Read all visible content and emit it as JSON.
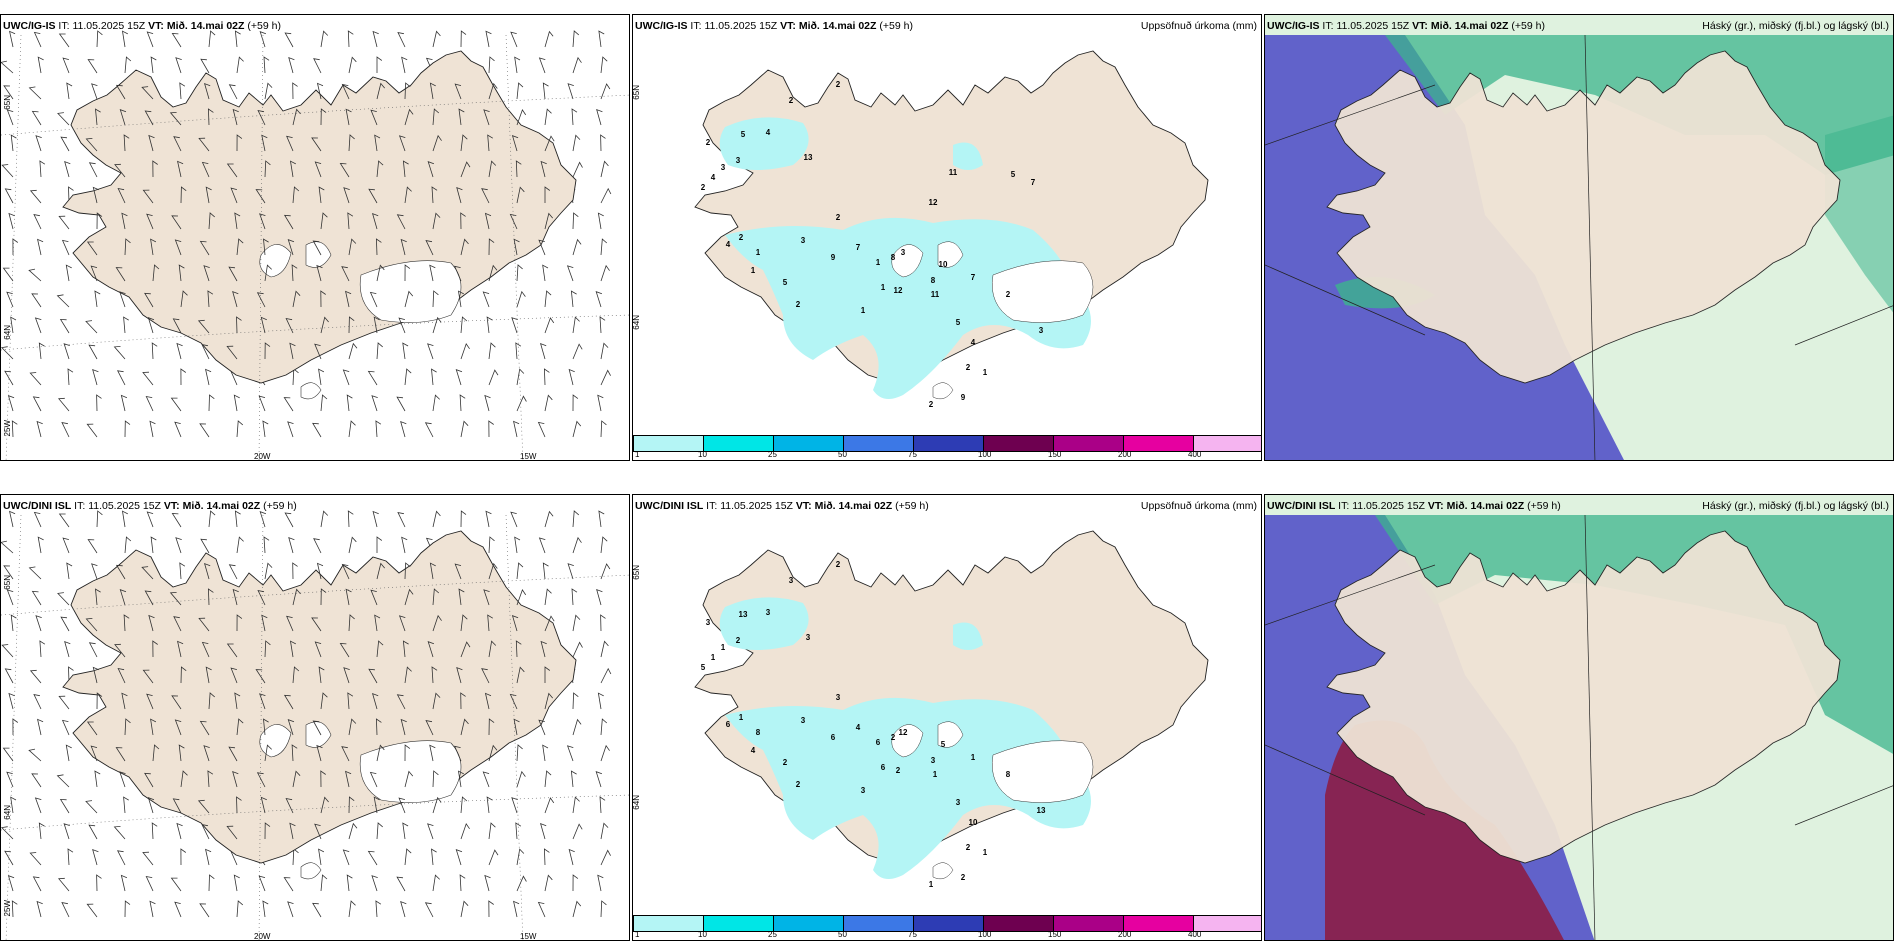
{
  "rows": [
    {
      "model": "UWC/IG-IS",
      "it_label": "IT:",
      "it_value": "11.05.2025 15Z",
      "vt_label": "VT:",
      "vt_value": "Mið. 14.mai 02Z",
      "lead": "(+59 h)",
      "axis_lat1": "65N",
      "axis_lat2": "64N",
      "axis_lon1": "25W",
      "axis_lon2": "20W",
      "axis_lon3": "15W",
      "precip_numbers": [
        "2",
        "2",
        "5",
        "4",
        "13",
        "2",
        "3",
        "3",
        "4",
        "2",
        "2",
        "1",
        "1",
        "4",
        "2",
        "3",
        "5",
        "1",
        "2",
        "9",
        "7",
        "8",
        "3",
        "1",
        "1",
        "10",
        "12",
        "8",
        "11",
        "7",
        "2",
        "5",
        "3",
        "4",
        "2",
        "1",
        "9",
        "2",
        "11",
        "12",
        "5",
        "7"
      ]
    },
    {
      "model": "UWC/DINI ISL",
      "it_label": "IT:",
      "it_value": "11.05.2025 15Z",
      "vt_label": "VT:",
      "vt_value": "Mið. 14.mai 02Z",
      "lead": "(+59 h)",
      "axis_lat1": "65N",
      "axis_lat2": "64N",
      "axis_lon1": "25W",
      "axis_lon2": "20W",
      "axis_lon3": "15W",
      "precip_numbers": [
        "2",
        "3",
        "13",
        "3",
        "3",
        "3",
        "2",
        "1",
        "1",
        "5",
        "3",
        "6",
        "8",
        "6",
        "1",
        "3",
        "2",
        "4",
        "2",
        "6",
        "4",
        "2",
        "12",
        "6",
        "3",
        "5",
        "2",
        "3",
        "1",
        "1",
        "8",
        "3",
        "13",
        "10",
        "2",
        "1",
        "2",
        "1"
      ]
    }
  ],
  "precip_title": "Uppsöfnuð úrkoma (mm)",
  "cloud_title": "Háský (gr.), miðský (fj.bl.) og lágský (bl.)",
  "colorbar": {
    "ticks": [
      "1",
      "10",
      "25",
      "50",
      "75",
      "100",
      "150",
      "200",
      "400"
    ],
    "colors": [
      "#b4f5f5",
      "#00e6e6",
      "#00b4e6",
      "#3c78e6",
      "#2d3cb4",
      "#6e0050",
      "#aa0087",
      "#e600a0",
      "#f5b4f0"
    ]
  },
  "colors": {
    "land": "#efe3d5",
    "precip_light": "#b4f5f5",
    "cloud_high": "#5a5ac8",
    "cloud_mid": "#3cb48c",
    "cloud_low": "#e6f5e6",
    "cloud_dark": "#8c1e46"
  }
}
